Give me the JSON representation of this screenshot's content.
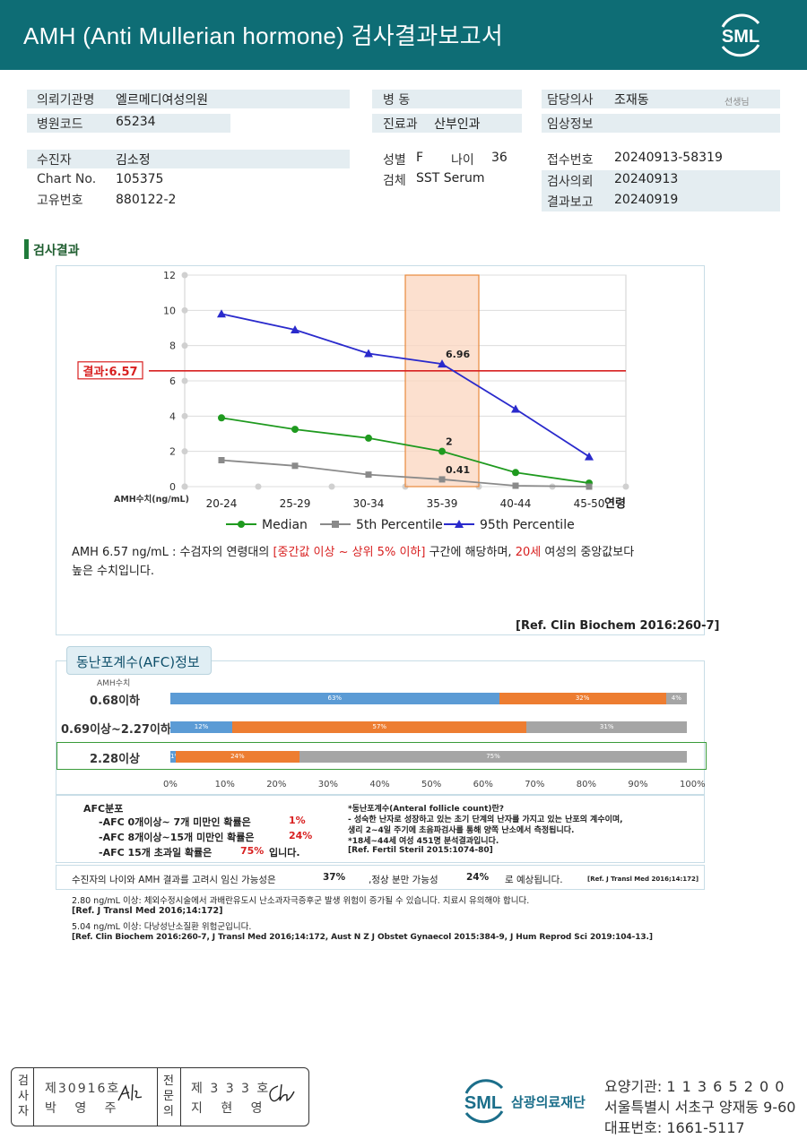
{
  "header": {
    "title": "AMH (Anti Mullerian hormone) 검사결과보고서",
    "logo_text": "SML"
  },
  "info": {
    "institution": {
      "label": "의뢰기관명",
      "value": "엘르메디여성의원"
    },
    "hospital_code": {
      "label": "병원코드",
      "value": "65234"
    },
    "ward": {
      "label": "병  동",
      "value": ""
    },
    "department": {
      "label": "진료과",
      "value": "산부인과"
    },
    "doctor": {
      "label": "담당의사",
      "value": "조재동",
      "suffix": "선생님"
    },
    "clinical_info": {
      "label": "임상정보",
      "value": ""
    },
    "patient": {
      "label": "수진자",
      "value": "김소정"
    },
    "chart_no": {
      "label": "Chart No.",
      "value": "105375"
    },
    "unique_no": {
      "label": "고유번호",
      "value": "880122-2"
    },
    "sex": {
      "label": "성별",
      "value": "F"
    },
    "age": {
      "label": "나이",
      "value": "36"
    },
    "specimen": {
      "label": "검체",
      "value": "SST Serum"
    },
    "receipt_no": {
      "label": "접수번호",
      "value": "20240913-58319"
    },
    "request_date": {
      "label": "검사의뢰",
      "value": "20240913"
    },
    "report_date": {
      "label": "결과보고",
      "value": "20240919"
    }
  },
  "section": {
    "title": "검사결과"
  },
  "chart_data": {
    "type": "line",
    "categories": [
      "20-24",
      "25-29",
      "30-34",
      "35-39",
      "40-44",
      "45-50"
    ],
    "xlabel": "연령",
    "ylabel": "AMH수치(ng/mL)",
    "ylim": [
      0,
      12
    ],
    "yticks": [
      0,
      2,
      4,
      6,
      8,
      10,
      12
    ],
    "series": [
      {
        "name": "Median",
        "values": [
          3.9,
          3.25,
          2.75,
          2.0,
          0.8,
          0.2
        ],
        "color": "#1f9a1f",
        "marker": "circle"
      },
      {
        "name": "5th Percentile",
        "values": [
          1.5,
          1.18,
          0.68,
          0.41,
          0.05,
          0.0
        ],
        "color": "#8a8a8a",
        "marker": "square"
      },
      {
        "name": "95th Percentile",
        "values": [
          9.8,
          8.9,
          7.55,
          6.96,
          4.4,
          1.7
        ],
        "color": "#2a2acc",
        "marker": "triangle"
      }
    ],
    "data_labels": [
      {
        "series": "95th Percentile",
        "category": "35-39",
        "text": "6.96"
      },
      {
        "series": "Median",
        "category": "35-39",
        "text": "2"
      },
      {
        "series": "5th Percentile",
        "category": "35-39",
        "text": "0.41"
      }
    ],
    "highlight_category": "35-39",
    "result_line": {
      "value": 6.57,
      "label": "결과:6.57",
      "color": "#d82020"
    },
    "grid": true,
    "legend": "bottom"
  },
  "description": {
    "line1_a": "AMH  6.57 ng/mL : 수검자의 연령대의 ",
    "line1_red1": "[중간값 이상 ~ 상위 5% 이하]",
    "line1_b": " 구간에 해당하며, ",
    "line1_red2": "20세",
    "line1_c": " 여성의 중앙값보다",
    "line2": "높은 수치입니다.",
    "ref": "[Ref. Clin Biochem 2016:260-7]"
  },
  "afc": {
    "tab_title": "동난포계수(AFC)정보",
    "col_header": "AMH수치",
    "colors": {
      "low": "#5b9bd5",
      "mid": "#ed7d31",
      "high": "#a5a5a5"
    },
    "rows": [
      {
        "label": "0.68이하",
        "segments": [
          63,
          32,
          4
        ],
        "labels": [
          "63%",
          "32%",
          "4%"
        ]
      },
      {
        "label": "0.69이상~2.27이하",
        "segments": [
          12,
          57,
          31
        ],
        "labels": [
          "12%",
          "57%",
          "31%"
        ]
      },
      {
        "label": "2.28이상",
        "segments": [
          1,
          24,
          75
        ],
        "labels": [
          "1%",
          "24%",
          "75%"
        ]
      }
    ],
    "x_ticks": [
      "0%",
      "10%",
      "20%",
      "30%",
      "40%",
      "50%",
      "60%",
      "70%",
      "80%",
      "90%",
      "100%"
    ],
    "dist_title": "AFC분포",
    "dist": [
      {
        "text": "-AFC  0개이상~ 7개 미만인 확률은",
        "value": "1%"
      },
      {
        "text": "-AFC  8개이상~15개 미만인 확률은",
        "value": "24%"
      },
      {
        "text": "-AFC  15개 초과일 확률은",
        "value": "75%",
        "suffix": "입니다."
      }
    ],
    "note_title": "*동난포계수(Anteral follicle count)란?",
    "note_1": "- 성숙한 난자로 성장하고 있는 초기 단계의 난자를 가지고 있는 난포의 계수이며,",
    "note_2": "  생리 2~4일 주기에 초음파검사를 통해 양쪽 난소에서 측정됩니다.",
    "note_3": "*18세~44세 여성 451명 분석결과입니다.",
    "note_ref": "[Ref. Fertil Steril 2015:1074-80]"
  },
  "pregnancy": {
    "text_a": "수진자의 나이와 AMH 결과를 고려시 임신 가능성은",
    "value_a": "37%",
    "text_b": ",정상 분만 가능성",
    "value_b": "24%",
    "text_c": "로 예상됩니다.",
    "ref": "[Ref. J Transl Med 2016;14:172]"
  },
  "notes": {
    "n1": "2.80  ng/mL  이상: 체외수정시술에서 과배란유도시 난소과자극증후군 발생 위험이 증가될 수 있습니다. 치료시 유의해야 합니다.",
    "n1_ref": "[Ref. J Transl Med 2016;14:172]",
    "n2": "5.04  ng/mL  이상: 다낭성난소질환 위험군입니다.",
    "n2_ref": "[Ref. Clin Biochem 2016:260-7, J Transl Med 2016;14:172, Aust N Z J Obstet Gynaecol 2015:384-9, J Hum Reprod Sci 2019:104-13.]"
  },
  "footer": {
    "cell1_label": "검사자",
    "cell1_no": "제30916호",
    "cell1_name": "박 영 주",
    "cell2_label": "전문의",
    "cell2_no": "제 3 3 3 호",
    "cell2_name": "지 현 영",
    "org_name": "삼광의료재단",
    "code_label": "요양기관:",
    "code_value": "1 1 3 6 5 2 0 0",
    "address": "서울특별시 서초구 양재동 9-60",
    "phone_label": "대표번호:",
    "phone_value": "1661-5117"
  }
}
